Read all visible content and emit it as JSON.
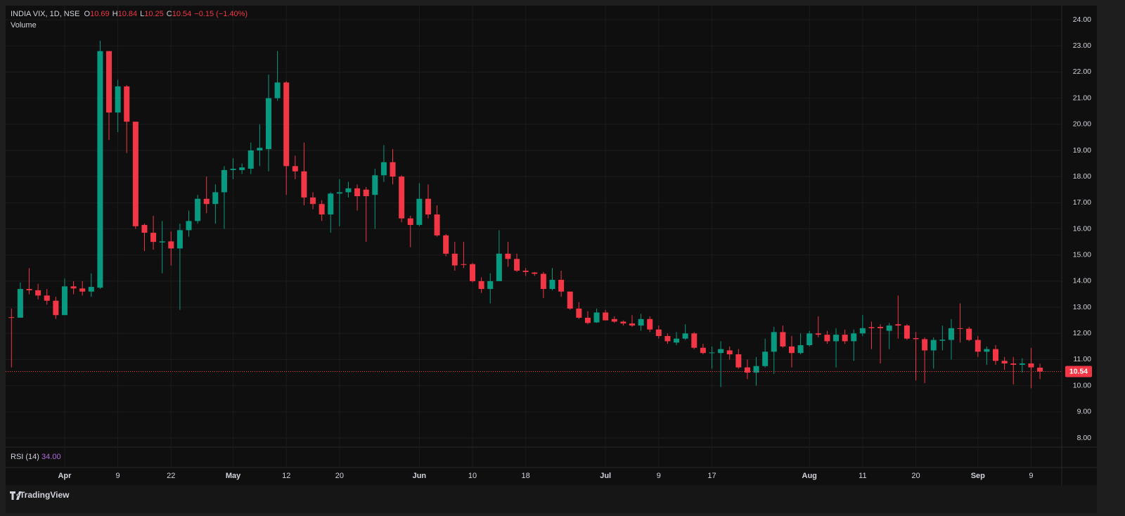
{
  "chart_data": {
    "type": "candlestick",
    "title": "INDIA VIX, 1D, NSE",
    "ohlc_letters": [
      "O",
      "H",
      "L",
      "C"
    ],
    "change": "−0.15 (−1.40%)",
    "volume_label": "Volume",
    "rsi": {
      "name": "RSI (14)",
      "value": 34,
      "value_label": "34.00"
    },
    "brand": "TradingView",
    "up_color": "#089981",
    "down_color": "#f23645",
    "grid": true,
    "categories": [
      null,
      null,
      null,
      null,
      null,
      null,
      "Apr",
      null,
      null,
      null,
      null,
      null,
      "9",
      null,
      null,
      null,
      null,
      null,
      "22",
      null,
      null,
      null,
      null,
      null,
      null,
      "May",
      null,
      null,
      null,
      null,
      null,
      "12",
      null,
      null,
      null,
      null,
      null,
      "20",
      null,
      null,
      null,
      null,
      null,
      null,
      null,
      null,
      "Jun",
      null,
      null,
      null,
      null,
      null,
      "10",
      null,
      null,
      null,
      null,
      null,
      "18",
      null,
      null,
      null,
      null,
      null,
      null,
      null,
      null,
      "Jul",
      null,
      null,
      null,
      null,
      null,
      "9",
      null,
      null,
      null,
      null,
      null,
      "17",
      null,
      null,
      null,
      null,
      null,
      null,
      null,
      null,
      null,
      null,
      "Aug",
      null,
      null,
      null,
      null,
      null,
      "11",
      null,
      null,
      null,
      null,
      null,
      "20",
      null,
      null,
      null,
      null,
      null,
      null,
      "Sep",
      null,
      null,
      null,
      null,
      null,
      "9",
      null
    ],
    "open": [
      12.62,
      12.6,
      13.7,
      13.65,
      13.45,
      13.25,
      12.7,
      13.8,
      13.72,
      13.6,
      13.75,
      22.8,
      20.45,
      21.45,
      20.1,
      16.15,
      15.85,
      15.48,
      15.52,
      15.25,
      15.95,
      16.3,
      17.15,
      16.95,
      17.4,
      18.25,
      18.25,
      18.3,
      19.0,
      19.05,
      21.0,
      21.6,
      18.4,
      18.2,
      17.2,
      16.95,
      16.55,
      17.35,
      17.4,
      17.55,
      17.5,
      17.3,
      18.05,
      18.55,
      18.0,
      16.4,
      16.15,
      17.15,
      16.55,
      15.75,
      15.05,
      14.65,
      14.65,
      14.0,
      13.7,
      14.0,
      15.05,
      14.85,
      14.4,
      14.33,
      14.28,
      13.7,
      14.05,
      13.6,
      12.95,
      12.6,
      12.42,
      12.8,
      12.55,
      12.45,
      12.38,
      12.3,
      12.55,
      12.15,
      11.9,
      11.65,
      11.8,
      12.0,
      11.45,
      11.25,
      11.25,
      11.35,
      11.2,
      10.7,
      10.5,
      10.75,
      11.3,
      12.05,
      11.5,
      11.25,
      11.55,
      12.0,
      11.95,
      11.7,
      11.95,
      11.7,
      12.0,
      12.24,
      12.25,
      12.1,
      12.35,
      12.3,
      11.82,
      11.78,
      11.35,
      11.72,
      11.75,
      12.2,
      12.18,
      11.75,
      11.3,
      11.4,
      10.95,
      10.85,
      10.8,
      10.85,
      10.69
    ],
    "high": [
      12.95,
      13.95,
      14.5,
      13.9,
      13.7,
      13.4,
      14.1,
      14.0,
      14.0,
      14.3,
      23.2,
      22.8,
      21.7,
      21.5,
      20.1,
      16.2,
      16.5,
      16.3,
      15.9,
      16.2,
      16.7,
      17.3,
      18.0,
      17.7,
      18.4,
      18.7,
      18.5,
      19.3,
      20.0,
      21.9,
      22.8,
      21.65,
      18.8,
      19.3,
      17.4,
      17.1,
      17.4,
      17.9,
      17.8,
      17.7,
      17.6,
      18.3,
      19.2,
      19.05,
      18.05,
      16.5,
      17.75,
      17.7,
      16.9,
      15.8,
      15.5,
      15.5,
      14.7,
      14.15,
      14.3,
      15.95,
      15.5,
      15.05,
      14.5,
      14.35,
      14.35,
      14.5,
      14.4,
      13.6,
      13.2,
      12.85,
      12.95,
      12.9,
      12.65,
      12.5,
      12.7,
      12.75,
      12.65,
      12.3,
      12.0,
      12.05,
      12.35,
      12.05,
      11.6,
      11.5,
      11.7,
      11.5,
      11.4,
      11.0,
      11.1,
      11.8,
      12.25,
      12.3,
      11.9,
      12.0,
      12.1,
      12.65,
      12.1,
      12.2,
      12.15,
      12.15,
      12.7,
      12.45,
      12.35,
      12.4,
      13.45,
      12.35,
      12.05,
      11.85,
      11.85,
      12.3,
      12.55,
      13.15,
      12.25,
      11.9,
      11.5,
      11.55,
      11.1,
      11.1,
      11.05,
      11.45,
      10.84
    ],
    "low": [
      10.7,
      12.6,
      13.5,
      13.3,
      13.1,
      12.55,
      12.7,
      13.5,
      13.45,
      13.4,
      13.7,
      19.4,
      19.7,
      18.9,
      16.0,
      15.15,
      15.2,
      14.3,
      14.6,
      12.9,
      15.7,
      16.2,
      16.6,
      16.2,
      16.0,
      17.9,
      18.1,
      18.1,
      18.4,
      18.2,
      20.9,
      17.3,
      17.9,
      16.9,
      16.75,
      16.3,
      15.85,
      16.1,
      17.2,
      16.7,
      15.5,
      16.0,
      17.8,
      17.7,
      16.25,
      15.3,
      16.1,
      16.4,
      15.7,
      14.95,
      14.4,
      14.5,
      13.95,
      13.55,
      13.15,
      14.0,
      14.55,
      14.35,
      14.2,
      14.2,
      13.35,
      13.65,
      13.4,
      12.9,
      12.55,
      12.35,
      12.4,
      12.5,
      12.4,
      12.3,
      12.25,
      12.1,
      12.05,
      11.8,
      11.6,
      11.55,
      11.75,
      11.4,
      11.2,
      10.65,
      9.95,
      11.0,
      10.65,
      10.25,
      10.0,
      10.7,
      10.45,
      11.45,
      10.7,
      11.2,
      11.5,
      11.85,
      11.6,
      10.7,
      11.6,
      10.95,
      11.9,
      11.4,
      10.85,
      11.4,
      11.8,
      11.75,
      10.2,
      10.1,
      10.65,
      11.35,
      11.0,
      11.65,
      11.7,
      11.1,
      10.8,
      10.8,
      10.6,
      10.05,
      10.5,
      9.9,
      10.25
    ],
    "close": [
      12.6,
      13.7,
      13.65,
      13.45,
      13.25,
      12.7,
      13.8,
      13.72,
      13.6,
      13.78,
      22.8,
      20.45,
      21.45,
      20.1,
      16.1,
      15.85,
      15.5,
      15.52,
      15.25,
      15.95,
      16.3,
      17.15,
      16.95,
      17.4,
      18.25,
      18.3,
      18.35,
      19.0,
      19.1,
      21.0,
      21.6,
      18.4,
      18.2,
      17.2,
      16.95,
      16.55,
      17.35,
      17.4,
      17.55,
      17.25,
      17.25,
      18.05,
      18.55,
      18.0,
      16.4,
      16.15,
      17.15,
      16.55,
      15.75,
      15.05,
      14.6,
      14.62,
      14.0,
      13.7,
      14.0,
      15.05,
      14.85,
      14.4,
      14.35,
      14.28,
      13.7,
      14.05,
      13.6,
      12.95,
      12.6,
      12.4,
      12.8,
      12.5,
      12.45,
      12.38,
      12.3,
      12.55,
      12.15,
      11.9,
      11.7,
      11.8,
      12.0,
      11.45,
      11.25,
      11.27,
      11.4,
      11.2,
      10.7,
      10.5,
      10.75,
      11.3,
      12.05,
      11.5,
      11.25,
      11.55,
      12.0,
      11.95,
      11.7,
      11.95,
      11.7,
      12.0,
      12.2,
      12.2,
      12.2,
      12.3,
      12.3,
      11.8,
      11.78,
      11.35,
      11.75,
      11.76,
      12.2,
      12.18,
      11.75,
      11.3,
      11.4,
      10.95,
      10.85,
      10.8,
      10.85,
      10.7,
      10.54
    ],
    "ylim": [
      7.65,
      24.54
    ],
    "yticks": [
      {
        "value": 8,
        "label": "8.00"
      },
      {
        "value": 9,
        "label": "9.00"
      },
      {
        "value": 10,
        "label": "10.00"
      },
      {
        "value": 11,
        "label": "11.00"
      },
      {
        "value": 12,
        "label": "12.00"
      },
      {
        "value": 13,
        "label": "13.00"
      },
      {
        "value": 14,
        "label": "14.00"
      },
      {
        "value": 15,
        "label": "15.00"
      },
      {
        "value": 16,
        "label": "16.00"
      },
      {
        "value": 17,
        "label": "17.00"
      },
      {
        "value": 18,
        "label": "18.00"
      },
      {
        "value": 19,
        "label": "19.00"
      },
      {
        "value": 20,
        "label": "20.00"
      },
      {
        "value": 21,
        "label": "21.00"
      },
      {
        "value": 22,
        "label": "22.00"
      },
      {
        "value": 23,
        "label": "23.00"
      },
      {
        "value": 24,
        "label": "24.00"
      }
    ]
  }
}
